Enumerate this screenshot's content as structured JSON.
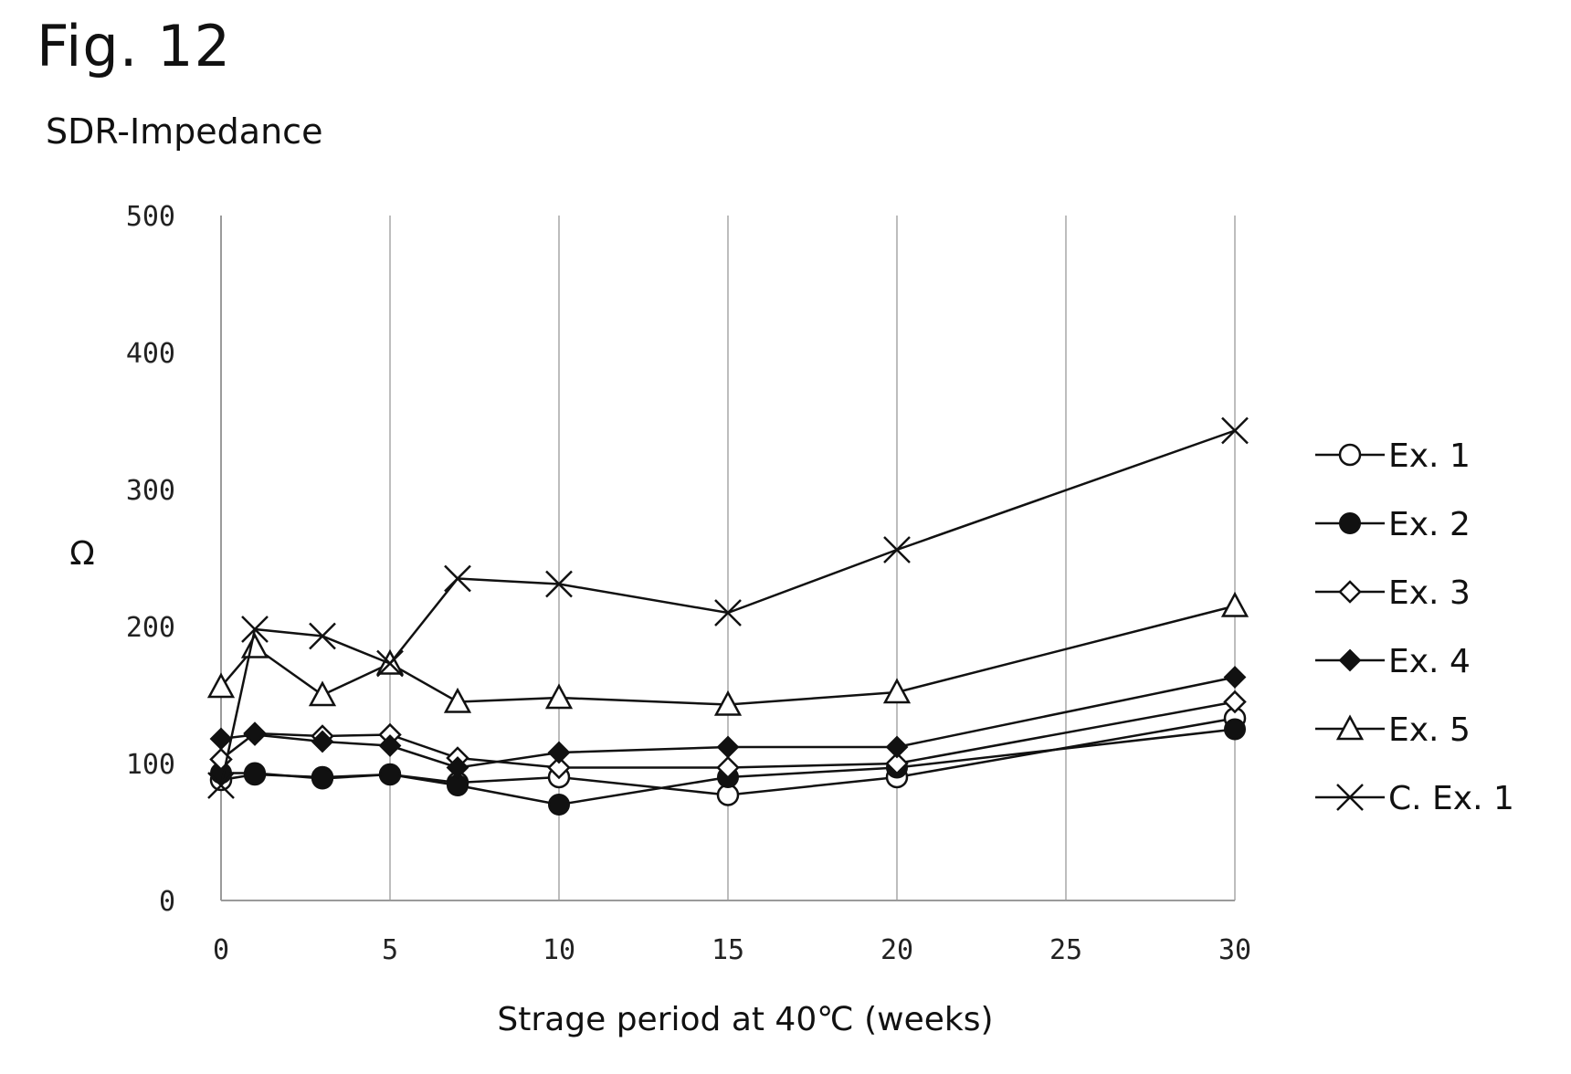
{
  "figure_label": "Fig. 12",
  "chart_data": {
    "type": "line",
    "title": "SDR-Impedance",
    "xlabel": "Strage period at 40℃ (weeks)",
    "ylabel": "Ω",
    "xlim": [
      0,
      30
    ],
    "ylim": [
      0,
      500
    ],
    "xticks": [
      0,
      5,
      10,
      15,
      20,
      25,
      30
    ],
    "yticks": [
      0,
      100,
      200,
      300,
      400,
      500
    ],
    "grid": "vertical",
    "legend_position": "right",
    "series": [
      {
        "name": "Ex. 1",
        "marker": "circle-open",
        "x": [
          0,
          1,
          3,
          5,
          7,
          10,
          15,
          20,
          30
        ],
        "y": [
          88,
          92,
          90,
          92,
          86,
          90,
          77,
          90,
          133
        ]
      },
      {
        "name": "Ex. 2",
        "marker": "circle-filled",
        "x": [
          0,
          1,
          3,
          5,
          7,
          10,
          15,
          20,
          30
        ],
        "y": [
          93,
          93,
          89,
          92,
          84,
          70,
          90,
          97,
          125
        ]
      },
      {
        "name": "Ex. 3",
        "marker": "diamond-open",
        "x": [
          0,
          1,
          3,
          5,
          7,
          10,
          15,
          20,
          30
        ],
        "y": [
          103,
          122,
          120,
          121,
          104,
          97,
          97,
          100,
          145
        ]
      },
      {
        "name": "Ex. 4",
        "marker": "diamond-filled",
        "x": [
          0,
          1,
          3,
          5,
          7,
          10,
          15,
          20,
          30
        ],
        "y": [
          118,
          121,
          116,
          113,
          97,
          108,
          112,
          112,
          163
        ]
      },
      {
        "name": "Ex. 5",
        "marker": "triangle-open",
        "x": [
          0,
          1,
          3,
          5,
          7,
          10,
          15,
          20,
          30
        ],
        "y": [
          156,
          185,
          150,
          173,
          145,
          148,
          143,
          152,
          215
        ]
      },
      {
        "name": "C. Ex. 1",
        "marker": "x",
        "x": [
          0,
          1,
          3,
          5,
          7,
          10,
          15,
          20,
          30
        ],
        "y": [
          84,
          198,
          193,
          173,
          235,
          231,
          210,
          256,
          343
        ]
      }
    ]
  }
}
